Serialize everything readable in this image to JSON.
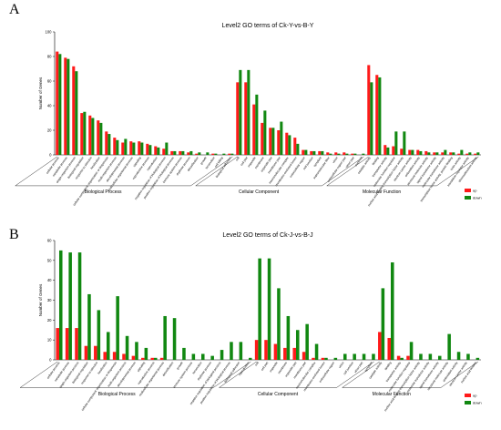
{
  "colors": {
    "up": "#ff1a1a",
    "down": "#118811"
  },
  "chart_data": [
    {
      "type": "bar",
      "panel": "A",
      "title": "Level2 GO terms of Ck-Y-vs-B-Y",
      "ylabel": "Number of Genes",
      "ylim": [
        0,
        100
      ],
      "yticks": [
        0,
        20,
        40,
        60,
        80,
        100
      ],
      "legend": [
        "up",
        "down"
      ],
      "groups": [
        {
          "name": "Biological Process",
          "start": 0,
          "end": 21
        },
        {
          "name": "Cellular Component",
          "start": 22,
          "end": 37
        },
        {
          "name": "Molecular Function",
          "start": 38,
          "end": 51
        }
      ],
      "categories": [
        "cellular process",
        "metabolic process",
        "single-organism process",
        "biological regulation",
        "response to stimulus",
        "localization",
        "cellular component organization or biogenesis",
        "multi-organism process",
        "developmental process",
        "multicellular organismal process",
        "signaling",
        "reproductive process",
        "reproduction",
        "negative regulation of biological process",
        "positive regulation of biological process",
        "immune system process",
        "rhythmic process",
        "detoxification",
        "growth",
        "locomotion",
        "cell killing",
        "biological adhesion",
        "cell",
        "cell part",
        "organelle",
        "membrane",
        "organelle part",
        "membrane part",
        "macromolecular complex",
        "membrane-enclosed lumen",
        "extracellular region",
        "cell junction",
        "symplast",
        "supramolecular fiber",
        "virion",
        "extracellular region part",
        "virion part",
        "nucleoid",
        "catalytic activity",
        "binding",
        "transporter activity",
        "molecular function regulator",
        "nucleic acid binding transcription factor activity",
        "electron carrier activity",
        "antioxidant activity",
        "structural molecule activity",
        "signal transducer activity",
        "molecular transducer activity",
        "transcription factor activity, protein binding",
        "toxin activity",
        "translation regulator activity",
        "chemoattractant activity"
      ],
      "series": [
        {
          "name": "up",
          "values": [
            84,
            79,
            72,
            34,
            32,
            28,
            19,
            14,
            10,
            11,
            11,
            9,
            7,
            5,
            3,
            3,
            2,
            1,
            0,
            1,
            0,
            1,
            59,
            59,
            41,
            26,
            22,
            20,
            18,
            14,
            4,
            3,
            3,
            2,
            2,
            2,
            1,
            0,
            73,
            65,
            8,
            7,
            5,
            4,
            4,
            3,
            2,
            2,
            2,
            1,
            1,
            1
          ]
        },
        {
          "name": "down",
          "values": [
            82,
            78,
            68,
            35,
            30,
            26,
            17,
            12,
            13,
            10,
            10,
            8,
            6,
            10,
            3,
            3,
            3,
            2,
            2,
            1,
            1,
            1,
            69,
            69,
            49,
            36,
            22,
            27,
            16,
            9,
            4,
            3,
            3,
            1,
            1,
            1,
            1,
            1,
            59,
            63,
            6,
            19,
            19,
            4,
            3,
            2,
            2,
            4,
            2,
            4,
            2,
            2
          ]
        }
      ]
    },
    {
      "type": "bar",
      "panel": "B",
      "title": "Level2 GO terms of Ck-J-vs-B-J",
      "ylabel": "Number of Genes",
      "ylim": [
        0,
        60
      ],
      "yticks": [
        0,
        10,
        20,
        30,
        40,
        50,
        60
      ],
      "legend": [
        "up",
        "down"
      ],
      "groups": [
        {
          "name": "Biological Process",
          "start": 0,
          "end": 20
        },
        {
          "name": "Cellular Component",
          "start": 21,
          "end": 33
        },
        {
          "name": "Molecular Function",
          "start": 34,
          "end": 44
        }
      ],
      "categories": [
        "cellular process",
        "metabolic process",
        "single-organism process",
        "biological regulation",
        "response to stimulus",
        "localization",
        "cellular component organization or biogenesis",
        "multi-organism process",
        "developmental process",
        "signaling",
        "reproductive process",
        "multicellular organismal process",
        "detoxification",
        "growth",
        "immune system process",
        "locomotion",
        "rhythmic process",
        "negative regulation of biological process",
        "positive regulation of biological process",
        "biological adhesion",
        "reproduction",
        "cell",
        "cell part",
        "organelle",
        "membrane",
        "organelle part",
        "membrane part",
        "macromolecular complex",
        "membrane-enclosed lumen",
        "extracellular region",
        "virion",
        "cell junction",
        "virion part",
        "symplast",
        "catalytic activity",
        "binding",
        "transporter activity",
        "molecular function regulator",
        "nucleic acid binding transcription factor activity",
        "molecular transducer activity",
        "signal transducer activity",
        "structural molecule activity",
        "antioxidant activity",
        "electron carrier activity",
        "nucleic acid binding"
      ],
      "series": [
        {
          "name": "up",
          "values": [
            16,
            16,
            16,
            7,
            7,
            4,
            4,
            3,
            2,
            1,
            1,
            1,
            0,
            0,
            0,
            0,
            0,
            0,
            0,
            0,
            0,
            10,
            10,
            8,
            6,
            6,
            4,
            1,
            1,
            0,
            0,
            0,
            0,
            0,
            14,
            11,
            2,
            2,
            0,
            0,
            0,
            0,
            0,
            0,
            0
          ]
        },
        {
          "name": "down",
          "values": [
            55,
            54,
            54,
            33,
            25,
            14,
            32,
            12,
            9,
            6,
            1,
            22,
            21,
            6,
            3,
            3,
            2,
            5,
            9,
            9,
            1,
            51,
            51,
            36,
            22,
            15,
            18,
            8,
            1,
            1,
            3,
            3,
            3,
            3,
            36,
            49,
            1,
            9,
            3,
            3,
            2,
            13,
            4,
            3,
            1
          ]
        }
      ]
    }
  ]
}
